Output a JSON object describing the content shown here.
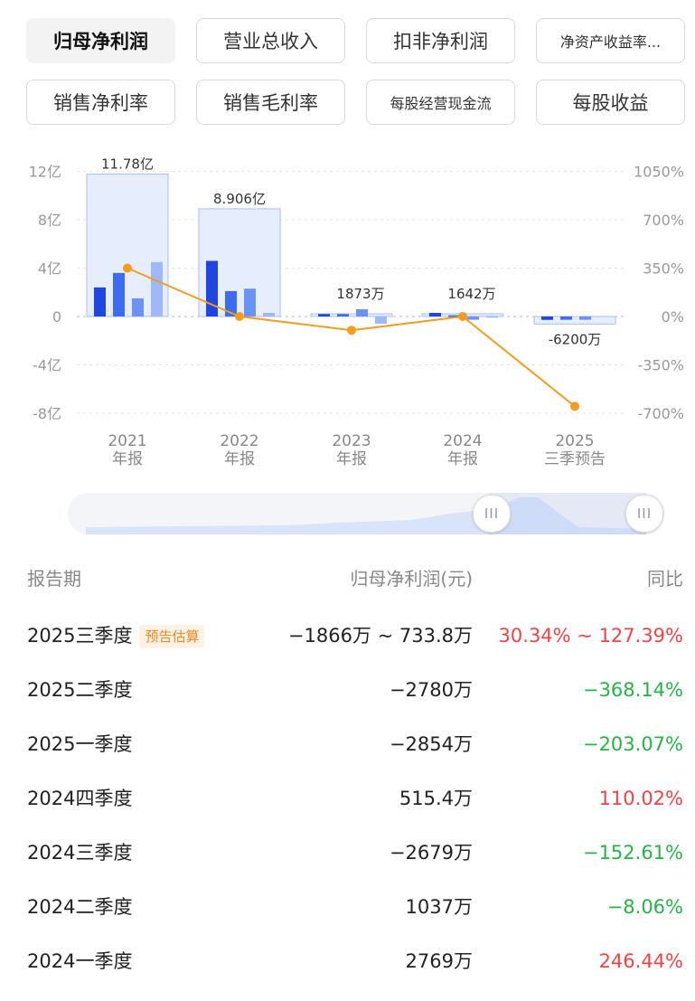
{
  "tabs": [
    {
      "label": "归母净利润",
      "active": true
    },
    {
      "label": "营业总收入",
      "active": false
    },
    {
      "label": "扣非净利润",
      "active": false
    },
    {
      "label": "净资产收益率...",
      "active": false
    },
    {
      "label": "销售净利率",
      "active": false
    },
    {
      "label": "销售毛利率",
      "active": false
    },
    {
      "label": "每股经营现金流",
      "active": false
    },
    {
      "label": "每股收益",
      "active": false
    }
  ],
  "chart_data": {
    "type": "bar",
    "categories": [
      "2021\n年报",
      "2022\n年报",
      "2023\n年报",
      "2024\n年报",
      "2025\n三季预告"
    ],
    "left_axis": {
      "ticks": [
        "12亿",
        "8亿",
        "4亿",
        "0",
        "-4亿",
        "-8亿"
      ],
      "values": [
        12,
        8,
        4,
        0,
        -4,
        -8
      ],
      "unit": "亿"
    },
    "right_axis": {
      "ticks": [
        "1050%",
        "700%",
        "350%",
        "0%",
        "-350%",
        "-700%"
      ],
      "values": [
        1050,
        700,
        350,
        0,
        -350,
        -700
      ]
    },
    "annual_values": [
      11.78,
      8.906,
      0.1873,
      0.1642,
      -0.62
    ],
    "annual_labels": [
      "11.78亿",
      "8.906亿",
      "1873万",
      "1642万",
      "-6200万"
    ],
    "quarterly_series": [
      {
        "values": [
          2.4,
          4.6,
          0.2,
          0.3,
          -0.28
        ],
        "color": "#1f47e0"
      },
      {
        "values": [
          3.6,
          2.1,
          0.2,
          0.1,
          -0.27
        ],
        "color": "#3d6cf0"
      },
      {
        "values": [
          1.5,
          2.3,
          0.6,
          -0.27,
          -0.27
        ],
        "color": "#6b92f5"
      },
      {
        "values": [
          4.5,
          0.3,
          -0.6,
          0.05,
          null
        ],
        "color": "#9fb8fa"
      }
    ],
    "growth_line": [
      350,
      0,
      -100,
      0,
      -650
    ],
    "colors": {
      "annual_fill": "#e6edfd",
      "annual_stroke": "#a9bff8",
      "line": "#f39c1e"
    }
  },
  "slider": {
    "left_handle": "III",
    "right_handle": "III"
  },
  "table": {
    "headers": [
      "报告期",
      "归母净利润(元)",
      "同比"
    ],
    "rows": [
      {
        "period": "2025三季度",
        "badge": "预告估算",
        "value": "−1866万 ~ 733.8万",
        "yoy": "30.34% ~ 127.39%",
        "yoy_color": "red"
      },
      {
        "period": "2025二季度",
        "badge": "",
        "value": "−2780万",
        "yoy": "−368.14%",
        "yoy_color": "green"
      },
      {
        "period": "2025一季度",
        "badge": "",
        "value": "−2854万",
        "yoy": "−203.07%",
        "yoy_color": "green"
      },
      {
        "period": "2024四季度",
        "badge": "",
        "value": "515.4万",
        "yoy": "110.02%",
        "yoy_color": "red"
      },
      {
        "period": "2024三季度",
        "badge": "",
        "value": "−2679万",
        "yoy": "−152.61%",
        "yoy_color": "green"
      },
      {
        "period": "2024二季度",
        "badge": "",
        "value": "1037万",
        "yoy": "−8.06%",
        "yoy_color": "green"
      },
      {
        "period": "2024一季度",
        "badge": "",
        "value": "2769万",
        "yoy": "246.44%",
        "yoy_color": "red"
      }
    ]
  }
}
